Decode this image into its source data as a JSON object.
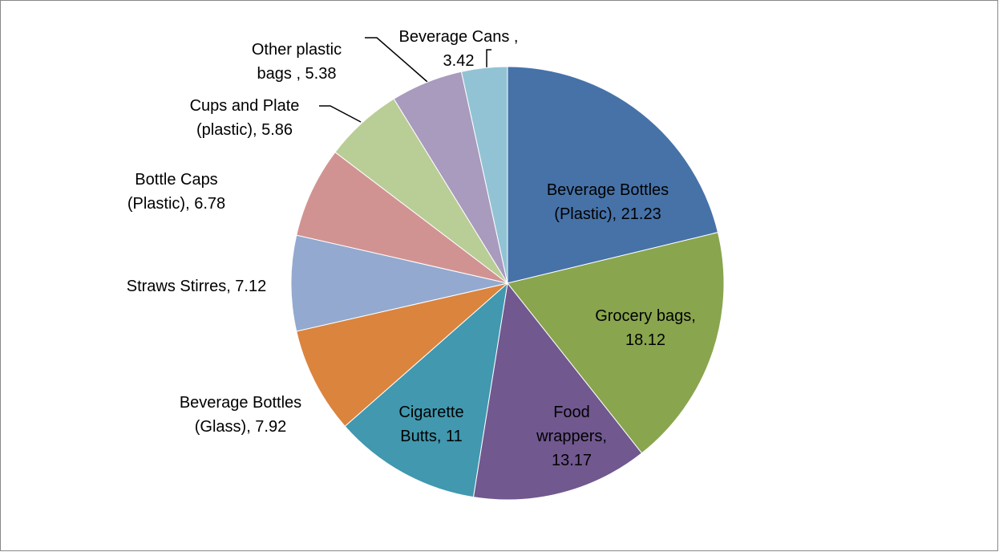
{
  "chart_data": {
    "type": "pie",
    "values": [
      21.23,
      18.12,
      13.17,
      11,
      7.92,
      7.12,
      6.78,
      5.86,
      5.38,
      3.42
    ],
    "value_labels": [
      [
        "Beverage Bottles",
        "(Plastic), 21.23"
      ],
      [
        "Grocery bags,",
        "18.12"
      ],
      [
        "Food",
        "wrappers,",
        "13.17"
      ],
      [
        "Cigarette",
        "Butts, 11"
      ],
      [
        "Beverage Bottles",
        "(Glass), 7.92"
      ],
      [
        "Straws Stirres, 7.12"
      ],
      [
        "Bottle Caps",
        "(Plastic), 6.78"
      ],
      [
        "Cups and Plate",
        "(plastic), 5.86"
      ],
      [
        "Other plastic",
        "bags , 5.38"
      ],
      [
        "Beverage Cans ,",
        "3.42"
      ]
    ],
    "colors": [
      "#4672a8",
      "#89a54e",
      "#71588f",
      "#4198af",
      "#db843d",
      "#93a9cf",
      "#d19392",
      "#b9cd96",
      "#a99bbd",
      "#92c3d4"
    ]
  }
}
